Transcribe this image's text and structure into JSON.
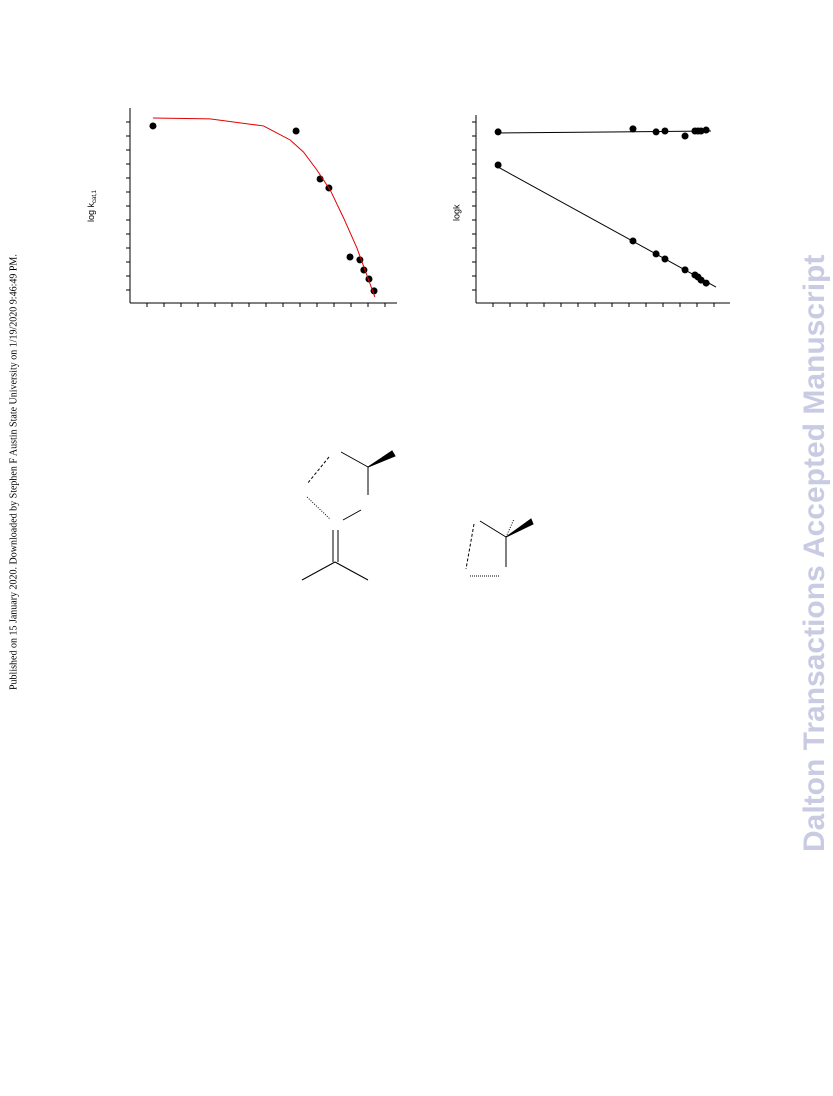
{
  "side_note": "Published on 15 January 2020. Downloaded by Stephen F Austin State University on 1/19/2020 9:46:49 PM.",
  "watermark": "Dalton Transactions Accepted Manuscript",
  "chart_data": [
    {
      "type": "scatter",
      "ylabel": "log k",
      "ylabel_sub": "cat,1",
      "xlim": [
        0,
        100
      ],
      "ylim": [
        0,
        100
      ],
      "series": [
        {
          "color": "#000000",
          "x": [
            8.6,
            62.2,
            71.2,
            74.5,
            82.4,
            86.1,
            87.6,
            89.5,
            91.4
          ],
          "values": [
            90.8,
            88.2,
            63.6,
            59.0,
            23.6,
            22.1,
            16.9,
            12.3,
            6.2
          ]
        },
        {
          "color": "#e00000",
          "line": true,
          "x": [
            8.6,
            30,
            50,
            60,
            65,
            70,
            75,
            80,
            85,
            91.7
          ],
          "values": [
            94.9,
            94.4,
            90.8,
            83.6,
            77.4,
            68.2,
            57.9,
            43.6,
            28.2,
            3.1
          ]
        }
      ]
    },
    {
      "type": "scatter",
      "ylabel": "logk",
      "xlim": [
        0,
        100
      ],
      "ylim": [
        0,
        100
      ],
      "series": [
        {
          "color": "#000000",
          "x": [
            8.7,
            61.8,
            70.9,
            74.4,
            82.3,
            86.2,
            87.4,
            88.6,
            90.6
          ],
          "values": [
            91.0,
            92.6,
            91.0,
            91.5,
            88.8,
            91.5,
            91.5,
            91.5,
            92.0
          ]
        },
        {
          "color": "#000000",
          "x": [
            8.7,
            61.8,
            70.9,
            74.4,
            82.3,
            86.2,
            87.4,
            88.6,
            90.6
          ],
          "values": [
            73.4,
            33.0,
            26.1,
            23.4,
            17.6,
            14.9,
            13.8,
            12.2,
            10.6
          ]
        },
        {
          "color": "#000000",
          "line": true,
          "x": [
            7.9,
            92.5
          ],
          "values": [
            90.4,
            91.5
          ]
        },
        {
          "color": "#000000",
          "line": true,
          "x": [
            7.9,
            94.5
          ],
          "values": [
            72.9,
            8.5
          ]
        }
      ]
    }
  ]
}
